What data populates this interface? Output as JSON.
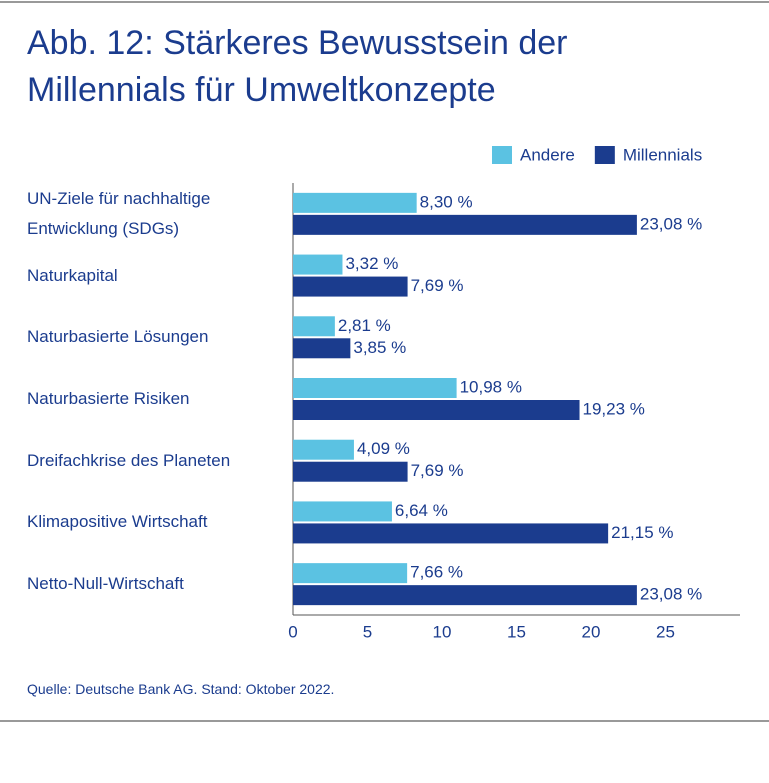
{
  "chart_data": {
    "type": "hbar",
    "title": "Abb. 12: Stärkeres Bewusstsein der Millennials für Umweltkonzepte",
    "categories": [
      "UN-Ziele für nachhaltige Entwicklung (SDGs)",
      "Naturkapital",
      "Naturbasierte Lösungen",
      "Naturbasierte Risiken",
      "Dreifachkrise des Planeten",
      "Klimapositive Wirtschaft",
      "Netto-Null-Wirtschaft"
    ],
    "series": [
      {
        "name": "Andere",
        "color": "#5bc2e2",
        "values": [
          8.3,
          3.32,
          2.81,
          10.98,
          4.09,
          6.64,
          7.66
        ],
        "value_labels": [
          "8,30 %",
          "3,32 %",
          "2,81 %",
          "10,98 %",
          "4,09 %",
          "6,64 %",
          "7,66 %"
        ]
      },
      {
        "name": "Millennials",
        "color": "#1b3c8e",
        "values": [
          23.08,
          7.69,
          3.85,
          19.23,
          7.69,
          21.15,
          23.08
        ],
        "value_labels": [
          "23,08 %",
          "7,69 %",
          "3,85 %",
          "19,23 %",
          "7,69 %",
          "21,15 %",
          "23,08 %"
        ]
      }
    ],
    "xlim": [
      0,
      30
    ],
    "xticks": [
      0,
      5,
      10,
      15,
      20,
      25
    ],
    "legend": "top-right",
    "source": "Quelle: Deutsche Bank AG. Stand: Oktober 2022."
  }
}
